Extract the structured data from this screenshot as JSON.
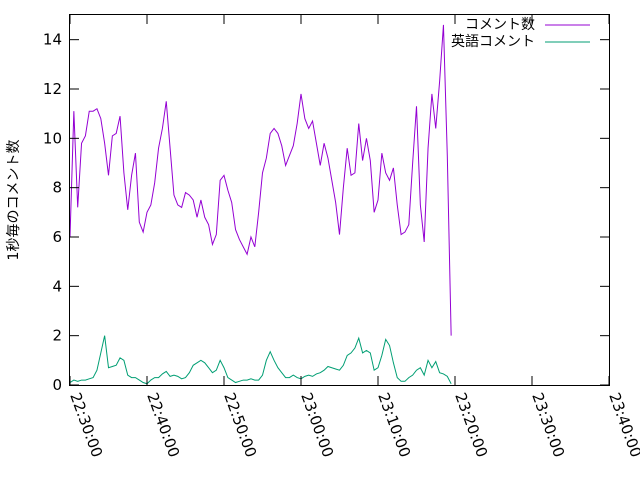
{
  "chart_data": {
    "type": "line",
    "title": "",
    "xlabel": "",
    "ylabel": "1秒毎のコメント数",
    "xlim": [
      "22:30:00",
      "23:40:00"
    ],
    "ylim": [
      0,
      15
    ],
    "x_tick_labels": [
      "22:30:00",
      "22:40:00",
      "22:50:00",
      "23:00:00",
      "23:10:00",
      "23:20:00",
      "23:30:00",
      "23:40:00"
    ],
    "y_ticks": [
      0,
      2,
      4,
      6,
      8,
      10,
      12,
      14
    ],
    "grid": false,
    "legend_position": "top-right",
    "series": [
      {
        "name": "コメント数",
        "color": "#9400d3",
        "points": [
          [
            "22:30:00",
            6.0
          ],
          [
            "22:30:30",
            11.1
          ],
          [
            "22:31:00",
            7.2
          ],
          [
            "22:31:30",
            9.8
          ],
          [
            "22:32:00",
            10.1
          ],
          [
            "22:32:30",
            11.1
          ],
          [
            "22:33:00",
            11.1
          ],
          [
            "22:33:30",
            11.2
          ],
          [
            "22:34:00",
            10.8
          ],
          [
            "22:34:30",
            9.8
          ],
          [
            "22:35:00",
            8.5
          ],
          [
            "22:35:30",
            10.1
          ],
          [
            "22:36:00",
            10.2
          ],
          [
            "22:36:30",
            10.9
          ],
          [
            "22:37:00",
            8.6
          ],
          [
            "22:37:30",
            7.1
          ],
          [
            "22:38:00",
            8.5
          ],
          [
            "22:38:30",
            9.4
          ],
          [
            "22:39:00",
            6.6
          ],
          [
            "22:39:30",
            6.2
          ],
          [
            "22:40:00",
            7.0
          ],
          [
            "22:40:30",
            7.3
          ],
          [
            "22:41:00",
            8.2
          ],
          [
            "22:41:30",
            9.6
          ],
          [
            "22:42:00",
            10.4
          ],
          [
            "22:42:30",
            11.5
          ],
          [
            "22:43:00",
            9.6
          ],
          [
            "22:43:30",
            7.7
          ],
          [
            "22:44:00",
            7.3
          ],
          [
            "22:44:30",
            7.2
          ],
          [
            "22:45:00",
            7.8
          ],
          [
            "22:45:30",
            7.7
          ],
          [
            "22:46:00",
            7.5
          ],
          [
            "22:46:30",
            6.8
          ],
          [
            "22:47:00",
            7.5
          ],
          [
            "22:47:30",
            6.8
          ],
          [
            "22:48:00",
            6.5
          ],
          [
            "22:48:30",
            5.7
          ],
          [
            "22:49:00",
            6.1
          ],
          [
            "22:49:30",
            8.3
          ],
          [
            "22:50:00",
            8.5
          ],
          [
            "22:50:30",
            7.9
          ],
          [
            "22:51:00",
            7.4
          ],
          [
            "22:51:30",
            6.3
          ],
          [
            "22:52:00",
            5.9
          ],
          [
            "22:52:30",
            5.6
          ],
          [
            "22:53:00",
            5.3
          ],
          [
            "22:53:30",
            6.0
          ],
          [
            "22:54:00",
            5.6
          ],
          [
            "22:54:30",
            7.0
          ],
          [
            "22:55:00",
            8.6
          ],
          [
            "22:55:30",
            9.2
          ],
          [
            "22:56:00",
            10.2
          ],
          [
            "22:56:30",
            10.4
          ],
          [
            "22:57:00",
            10.2
          ],
          [
            "22:57:30",
            9.7
          ],
          [
            "22:58:00",
            8.9
          ],
          [
            "22:58:30",
            9.3
          ],
          [
            "22:59:00",
            9.7
          ],
          [
            "22:59:30",
            10.6
          ],
          [
            "23:00:00",
            11.8
          ],
          [
            "23:00:30",
            10.8
          ],
          [
            "23:01:00",
            10.4
          ],
          [
            "23:01:30",
            10.7
          ],
          [
            "23:02:00",
            9.8
          ],
          [
            "23:02:30",
            8.9
          ],
          [
            "23:03:00",
            9.8
          ],
          [
            "23:03:30",
            9.2
          ],
          [
            "23:04:00",
            8.3
          ],
          [
            "23:04:30",
            7.4
          ],
          [
            "23:05:00",
            6.1
          ],
          [
            "23:05:30",
            8.0
          ],
          [
            "23:06:00",
            9.6
          ],
          [
            "23:06:30",
            8.5
          ],
          [
            "23:07:00",
            8.6
          ],
          [
            "23:07:30",
            10.6
          ],
          [
            "23:08:00",
            9.1
          ],
          [
            "23:08:30",
            10.0
          ],
          [
            "23:09:00",
            9.1
          ],
          [
            "23:09:30",
            7.0
          ],
          [
            "23:10:00",
            7.5
          ],
          [
            "23:10:30",
            9.4
          ],
          [
            "23:11:00",
            8.6
          ],
          [
            "23:11:30",
            8.3
          ],
          [
            "23:12:00",
            8.8
          ],
          [
            "23:12:30",
            7.3
          ],
          [
            "23:13:00",
            6.1
          ],
          [
            "23:13:30",
            6.2
          ],
          [
            "23:14:00",
            6.5
          ],
          [
            "23:14:30",
            9.0
          ],
          [
            "23:15:00",
            11.3
          ],
          [
            "23:15:30",
            7.3
          ],
          [
            "23:16:00",
            5.8
          ],
          [
            "23:16:30",
            9.6
          ],
          [
            "23:17:00",
            11.8
          ],
          [
            "23:17:30",
            10.4
          ],
          [
            "23:18:00",
            12.3
          ],
          [
            "23:18:30",
            14.6
          ],
          [
            "23:19:00",
            9.3
          ],
          [
            "23:19:30",
            2.0
          ]
        ]
      },
      {
        "name": "英語コメント",
        "color": "#009e73",
        "points": [
          [
            "22:30:00",
            0.1
          ],
          [
            "22:30:30",
            0.2
          ],
          [
            "22:31:00",
            0.15
          ],
          [
            "22:31:30",
            0.2
          ],
          [
            "22:32:00",
            0.2
          ],
          [
            "22:32:30",
            0.25
          ],
          [
            "22:33:00",
            0.3
          ],
          [
            "22:33:30",
            0.6
          ],
          [
            "22:34:00",
            1.3
          ],
          [
            "22:34:30",
            2.0
          ],
          [
            "22:35:00",
            0.7
          ],
          [
            "22:35:30",
            0.75
          ],
          [
            "22:36:00",
            0.8
          ],
          [
            "22:36:30",
            1.1
          ],
          [
            "22:37:00",
            1.0
          ],
          [
            "22:37:30",
            0.4
          ],
          [
            "22:38:00",
            0.3
          ],
          [
            "22:38:30",
            0.3
          ],
          [
            "22:39:00",
            0.2
          ],
          [
            "22:39:30",
            0.1
          ],
          [
            "22:40:00",
            0.05
          ],
          [
            "22:40:30",
            0.2
          ],
          [
            "22:41:00",
            0.3
          ],
          [
            "22:41:30",
            0.3
          ],
          [
            "22:42:00",
            0.45
          ],
          [
            "22:42:30",
            0.55
          ],
          [
            "22:43:00",
            0.35
          ],
          [
            "22:43:30",
            0.4
          ],
          [
            "22:44:00",
            0.35
          ],
          [
            "22:44:30",
            0.25
          ],
          [
            "22:45:00",
            0.3
          ],
          [
            "22:45:30",
            0.5
          ],
          [
            "22:46:00",
            0.8
          ],
          [
            "22:46:30",
            0.9
          ],
          [
            "22:47:00",
            1.0
          ],
          [
            "22:47:30",
            0.9
          ],
          [
            "22:48:00",
            0.7
          ],
          [
            "22:48:30",
            0.5
          ],
          [
            "22:49:00",
            0.6
          ],
          [
            "22:49:30",
            1.0
          ],
          [
            "22:50:00",
            0.7
          ],
          [
            "22:50:30",
            0.3
          ],
          [
            "22:51:00",
            0.2
          ],
          [
            "22:51:30",
            0.1
          ],
          [
            "22:52:00",
            0.15
          ],
          [
            "22:52:30",
            0.2
          ],
          [
            "22:53:00",
            0.2
          ],
          [
            "22:53:30",
            0.25
          ],
          [
            "22:54:00",
            0.2
          ],
          [
            "22:54:30",
            0.2
          ],
          [
            "22:55:00",
            0.4
          ],
          [
            "22:55:30",
            1.0
          ],
          [
            "22:56:00",
            1.35
          ],
          [
            "22:56:30",
            1.0
          ],
          [
            "22:57:00",
            0.7
          ],
          [
            "22:57:30",
            0.5
          ],
          [
            "22:58:00",
            0.3
          ],
          [
            "22:58:30",
            0.3
          ],
          [
            "22:59:00",
            0.4
          ],
          [
            "22:59:30",
            0.3
          ],
          [
            "23:00:00",
            0.25
          ],
          [
            "23:00:30",
            0.35
          ],
          [
            "23:01:00",
            0.4
          ],
          [
            "23:01:30",
            0.35
          ],
          [
            "23:02:00",
            0.45
          ],
          [
            "23:02:30",
            0.5
          ],
          [
            "23:03:00",
            0.6
          ],
          [
            "23:03:30",
            0.75
          ],
          [
            "23:04:00",
            0.7
          ],
          [
            "23:04:30",
            0.65
          ],
          [
            "23:05:00",
            0.6
          ],
          [
            "23:05:30",
            0.8
          ],
          [
            "23:06:00",
            1.2
          ],
          [
            "23:06:30",
            1.3
          ],
          [
            "23:07:00",
            1.5
          ],
          [
            "23:07:30",
            1.9
          ],
          [
            "23:08:00",
            1.3
          ],
          [
            "23:08:30",
            1.4
          ],
          [
            "23:09:00",
            1.3
          ],
          [
            "23:09:30",
            0.6
          ],
          [
            "23:10:00",
            0.7
          ],
          [
            "23:10:30",
            1.2
          ],
          [
            "23:11:00",
            1.85
          ],
          [
            "23:11:30",
            1.6
          ],
          [
            "23:12:00",
            0.9
          ],
          [
            "23:12:30",
            0.3
          ],
          [
            "23:13:00",
            0.15
          ],
          [
            "23:13:30",
            0.15
          ],
          [
            "23:14:00",
            0.3
          ],
          [
            "23:14:30",
            0.4
          ],
          [
            "23:15:00",
            0.6
          ],
          [
            "23:15:30",
            0.7
          ],
          [
            "23:16:00",
            0.4
          ],
          [
            "23:16:30",
            1.0
          ],
          [
            "23:17:00",
            0.7
          ],
          [
            "23:17:30",
            0.95
          ],
          [
            "23:18:00",
            0.5
          ],
          [
            "23:18:30",
            0.45
          ],
          [
            "23:19:00",
            0.35
          ],
          [
            "23:19:30",
            0.05
          ]
        ]
      }
    ]
  }
}
